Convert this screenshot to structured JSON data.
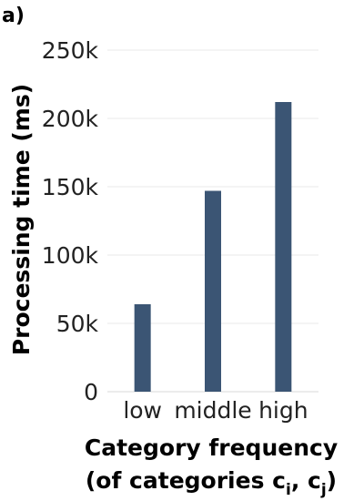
{
  "panel_label": "a)",
  "chart_data": {
    "type": "bar",
    "categories": [
      "low",
      "middle",
      "high"
    ],
    "values": [
      64000,
      147000,
      212000
    ],
    "ylabel": "Processing time (ms)",
    "xlabel_line1": "Category frequency",
    "xlabel_line2_prefix": "(of categories c",
    "xlabel_sub_i": "i",
    "xlabel_mid": ", c",
    "xlabel_sub_j": "j",
    "xlabel_suffix": ")",
    "ylim": [
      0,
      250000
    ],
    "yticks": [
      0,
      50000,
      100000,
      150000,
      200000,
      250000
    ],
    "ytick_labels": [
      "0",
      "50k",
      "100k",
      "150k",
      "200k",
      "250k"
    ],
    "bar_color": "#3b5574",
    "grid": true
  }
}
